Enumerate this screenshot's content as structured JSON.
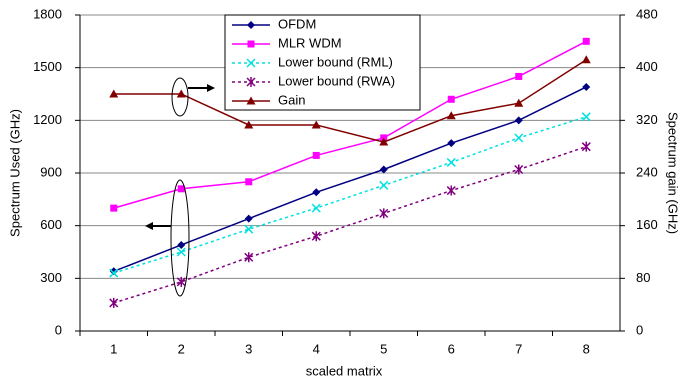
{
  "chart_data": {
    "type": "line",
    "x_label": "scaled matrix",
    "y_label": "Spectrum Used (GHz)",
    "y2_label": "Spectrum gain (GHz)",
    "categories": [
      "1",
      "2",
      "3",
      "4",
      "5",
      "6",
      "7",
      "8"
    ],
    "ylim": [
      0,
      1800
    ],
    "yticks": [
      0,
      300,
      600,
      900,
      1200,
      1500,
      1800
    ],
    "y2lim": [
      0,
      480
    ],
    "y2ticks": [
      0,
      80,
      160,
      240,
      320,
      400,
      480
    ],
    "grid": true,
    "series": [
      {
        "name": "OFDM",
        "color": "#000080",
        "marker": "diamond",
        "dashed": false,
        "values": [
          340,
          490,
          640,
          790,
          920,
          1070,
          1200,
          1390
        ]
      },
      {
        "name": "MLR WDM",
        "color": "#ff00ff",
        "marker": "square",
        "dashed": false,
        "values": [
          700,
          810,
          850,
          1000,
          1100,
          1320,
          1450,
          1650
        ]
      },
      {
        "name": "Lower bound (RML)",
        "color": "#00e0e0",
        "marker": "x",
        "dashed": true,
        "values": [
          330,
          450,
          580,
          700,
          830,
          960,
          1100,
          1220
        ]
      },
      {
        "name": "Lower bound (RWA)",
        "color": "#800080",
        "marker": "star",
        "dashed": true,
        "values": [
          160,
          280,
          420,
          540,
          670,
          800,
          920,
          1050
        ]
      },
      {
        "name": "Gain",
        "color": "#800000",
        "marker": "triangle",
        "dashed": false,
        "axis": "y2",
        "values": [
          360,
          360,
          313,
          313,
          287,
          327,
          346,
          412
        ]
      }
    ]
  }
}
